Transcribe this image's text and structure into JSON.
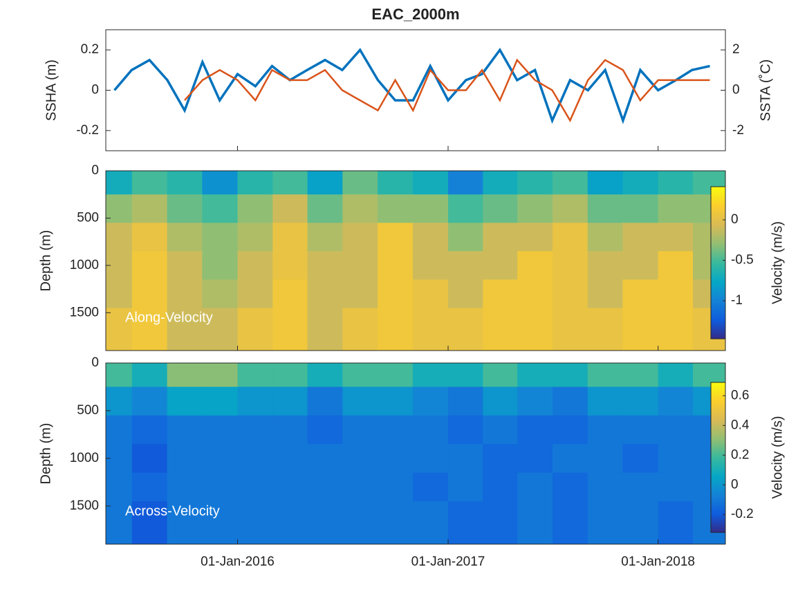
{
  "chart_data": [
    {
      "type": "line",
      "title": "EAC_2000m",
      "xlim": [
        "2015-05-17",
        "2018-04-28"
      ],
      "xticks": [
        "2016-01-01",
        "2017-01-01",
        "2018-01-01"
      ],
      "x": [
        "2015-06-01",
        "2015-07-01",
        "2015-08-01",
        "2015-09-01",
        "2015-10-01",
        "2015-11-01",
        "2015-12-01",
        "2016-01-01",
        "2016-02-01",
        "2016-03-01",
        "2016-04-01",
        "2016-05-01",
        "2016-06-01",
        "2016-07-01",
        "2016-08-01",
        "2016-09-01",
        "2016-10-01",
        "2016-11-01",
        "2016-12-01",
        "2017-01-01",
        "2017-02-01",
        "2017-03-01",
        "2017-04-01",
        "2017-05-01",
        "2017-06-01",
        "2017-07-01",
        "2017-08-01",
        "2017-09-01",
        "2017-10-01",
        "2017-11-01",
        "2017-12-01",
        "2018-01-01",
        "2018-02-01",
        "2018-03-01",
        "2018-04-01"
      ],
      "ylabel": "SSHA (m)",
      "y2label": "SSTA (˚C)",
      "ylim": [
        -0.3,
        0.3
      ],
      "yticks": [
        -0.2,
        0,
        0.2
      ],
      "y2lim": [
        -3,
        3
      ],
      "y2ticks": [
        -2,
        0,
        2
      ],
      "series": [
        {
          "name": "SSHA",
          "color": "#0072bd",
          "values": [
            0.0,
            0.1,
            0.15,
            0.05,
            -0.1,
            0.14,
            -0.05,
            0.08,
            0.02,
            0.12,
            0.05,
            0.1,
            0.15,
            0.1,
            0.2,
            0.05,
            -0.05,
            -0.05,
            0.12,
            -0.05,
            0.05,
            0.08,
            0.2,
            0.05,
            0.1,
            -0.15,
            0.05,
            0.0,
            0.1,
            -0.15,
            0.1,
            0.0,
            0.05,
            0.1,
            0.12
          ]
        },
        {
          "name": "SSTA",
          "color": "#d95319",
          "axis": "y2",
          "values": [
            null,
            null,
            null,
            null,
            -0.5,
            0.5,
            1,
            0.5,
            -0.5,
            1,
            0.5,
            0.5,
            1,
            0,
            -0.5,
            -1,
            0.5,
            -1,
            1,
            0,
            0,
            1,
            -0.5,
            1.5,
            0.5,
            0,
            -1.5,
            0.5,
            1.5,
            1,
            -0.5,
            0.5,
            0.5,
            0.5,
            0.5
          ]
        }
      ]
    },
    {
      "type": "heatmap",
      "annotation": "Along-Velocity",
      "ylabel": "Depth (m)",
      "clabel": "Velocity (m/s)",
      "xlim": [
        "2015-05-17",
        "2018-04-28"
      ],
      "xticks": [
        "2016-01-01",
        "2017-01-01",
        "2018-01-01"
      ],
      "ylim": [
        1900,
        0
      ],
      "yticks": [
        0,
        500,
        1000,
        1500
      ],
      "clim": [
        -1.47,
        0.41
      ],
      "cticks": [
        0,
        -0.5,
        -1
      ],
      "colormap": "parula",
      "x": [
        "2015-06-01",
        "2015-08-01",
        "2015-10-01",
        "2015-12-01",
        "2016-02-01",
        "2016-04-01",
        "2016-06-01",
        "2016-08-01",
        "2016-10-01",
        "2016-12-01",
        "2017-02-01",
        "2017-04-01",
        "2017-06-01",
        "2017-08-01",
        "2017-10-01",
        "2017-12-01",
        "2018-02-01",
        "2018-04-01"
      ],
      "y": [
        100,
        400,
        700,
        1000,
        1300,
        1600
      ],
      "values": [
        [
          -0.7,
          -0.5,
          -0.6,
          -0.9,
          -0.6,
          -0.5,
          -0.8,
          -0.4,
          -0.6,
          -0.7,
          -1.0,
          -0.7,
          -0.6,
          -0.5,
          -0.8,
          -0.7,
          -0.6,
          -0.5
        ],
        [
          -0.3,
          -0.2,
          -0.4,
          -0.5,
          -0.3,
          -0.1,
          -0.4,
          -0.2,
          -0.3,
          -0.3,
          -0.5,
          -0.4,
          -0.3,
          -0.2,
          -0.4,
          -0.4,
          -0.3,
          -0.3
        ],
        [
          -0.1,
          0.05,
          -0.2,
          -0.3,
          -0.2,
          0.05,
          -0.2,
          -0.1,
          0.1,
          -0.1,
          -0.3,
          -0.1,
          -0.1,
          0.05,
          -0.2,
          -0.1,
          -0.1,
          -0.2
        ],
        [
          -0.1,
          0.1,
          -0.1,
          -0.3,
          -0.1,
          0.05,
          -0.1,
          -0.1,
          0.1,
          -0.1,
          -0.1,
          -0.1,
          0.1,
          0.05,
          -0.1,
          -0.1,
          0.1,
          -0.2
        ],
        [
          -0.1,
          0.1,
          -0.1,
          -0.2,
          -0.1,
          0.1,
          -0.1,
          -0.1,
          0.1,
          0.05,
          -0.1,
          0.1,
          0.1,
          0.05,
          -0.1,
          0.1,
          0.1,
          -0.1
        ],
        [
          0.05,
          0.1,
          -0.1,
          -0.1,
          0.05,
          0.1,
          -0.1,
          0.05,
          0.1,
          0.05,
          0.05,
          0.1,
          0.1,
          0.05,
          0.05,
          0.1,
          0.1,
          0.05
        ]
      ]
    },
    {
      "type": "heatmap",
      "annotation": "Across-Velocity",
      "ylabel": "Depth (m)",
      "clabel": "Velocity (m/s)",
      "xlim": [
        "2015-05-17",
        "2018-04-28"
      ],
      "xticks": [
        {
          "value": "2016-01-01",
          "label": "01-Jan-2016"
        },
        {
          "value": "2017-01-01",
          "label": "01-Jan-2017"
        },
        {
          "value": "2018-01-01",
          "label": "01-Jan-2018"
        }
      ],
      "ylim": [
        1900,
        0
      ],
      "yticks": [
        0,
        500,
        1000,
        1500
      ],
      "clim": [
        -0.32,
        0.69
      ],
      "cticks": [
        0.6,
        0.4,
        0.2,
        0,
        -0.2
      ],
      "colormap": "parula",
      "x": [
        "2015-06-01",
        "2015-08-01",
        "2015-10-01",
        "2015-12-01",
        "2016-02-01",
        "2016-04-01",
        "2016-06-01",
        "2016-08-01",
        "2016-10-01",
        "2016-12-01",
        "2017-02-01",
        "2017-04-01",
        "2017-06-01",
        "2017-08-01",
        "2017-10-01",
        "2017-12-01",
        "2018-02-01",
        "2018-04-01"
      ],
      "y": [
        100,
        400,
        700,
        1000,
        1300,
        1600
      ],
      "values": [
        [
          0.2,
          0.1,
          0.3,
          0.3,
          0.2,
          0.2,
          0.1,
          0.2,
          0.2,
          0.1,
          0.1,
          0.2,
          0.1,
          0.1,
          0.2,
          0.2,
          0.1,
          0.2
        ],
        [
          0.0,
          -0.05,
          0.05,
          0.05,
          0.0,
          0.0,
          -0.1,
          0.0,
          0.0,
          -0.05,
          -0.1,
          0.0,
          -0.05,
          -0.1,
          0.0,
          0.0,
          -0.05,
          0.0
        ],
        [
          -0.1,
          -0.15,
          -0.1,
          -0.1,
          -0.1,
          -0.1,
          -0.15,
          -0.1,
          -0.1,
          -0.1,
          -0.15,
          -0.1,
          -0.15,
          -0.15,
          -0.1,
          -0.1,
          -0.1,
          -0.1
        ],
        [
          -0.1,
          -0.2,
          -0.1,
          -0.1,
          -0.1,
          -0.1,
          -0.1,
          -0.1,
          -0.1,
          -0.1,
          -0.1,
          -0.15,
          -0.15,
          -0.1,
          -0.1,
          -0.15,
          -0.1,
          -0.1
        ],
        [
          -0.1,
          -0.15,
          -0.1,
          -0.1,
          -0.1,
          -0.1,
          -0.1,
          -0.1,
          -0.1,
          -0.15,
          -0.1,
          -0.15,
          -0.1,
          -0.15,
          -0.1,
          -0.1,
          -0.1,
          -0.1
        ],
        [
          -0.1,
          -0.2,
          -0.1,
          -0.1,
          -0.1,
          -0.1,
          -0.1,
          -0.1,
          -0.1,
          -0.1,
          -0.15,
          -0.15,
          -0.1,
          -0.15,
          -0.1,
          -0.1,
          -0.15,
          -0.1
        ]
      ]
    }
  ]
}
